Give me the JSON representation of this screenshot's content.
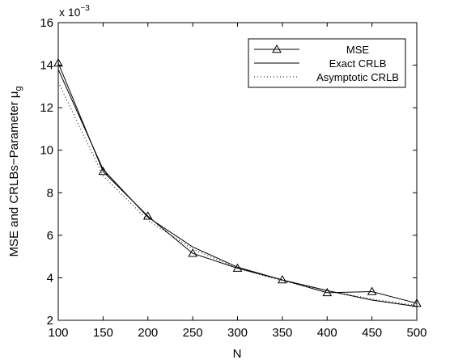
{
  "chart_data": {
    "type": "line",
    "title": "",
    "xlabel": "N",
    "ylabel_main": "MSE and CRLBs−Parameter μ",
    "ylabel_sub": "g",
    "y_multiplier_prefix": "x 10",
    "y_multiplier_exponent": "−3",
    "xlim": [
      100,
      500
    ],
    "ylim": [
      2,
      16
    ],
    "x_ticks": [
      100,
      150,
      200,
      250,
      300,
      350,
      400,
      450,
      500
    ],
    "y_ticks": [
      2,
      4,
      6,
      8,
      10,
      12,
      14,
      16
    ],
    "grid": false,
    "legend_position": "top-right",
    "x": [
      100,
      150,
      200,
      250,
      300,
      350,
      400,
      450,
      500
    ],
    "series": [
      {
        "name": "MSE",
        "style": "solid-triangle-markers",
        "values": [
          14.1,
          9.0,
          6.9,
          5.15,
          4.45,
          3.9,
          3.3,
          3.35,
          2.8
        ]
      },
      {
        "name": "Exact CRLB",
        "style": "solid",
        "values": [
          13.8,
          9.1,
          6.85,
          5.45,
          4.5,
          3.9,
          3.4,
          2.95,
          2.65
        ]
      },
      {
        "name": "Asymptotic CRLB",
        "style": "dotted",
        "values": [
          13.2,
          8.8,
          6.7,
          5.35,
          4.45,
          3.85,
          3.4,
          3.0,
          2.7
        ]
      }
    ]
  }
}
